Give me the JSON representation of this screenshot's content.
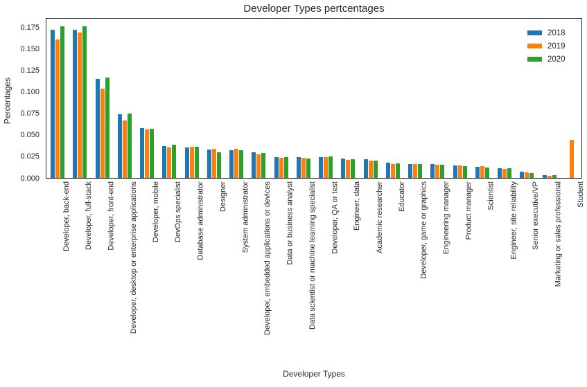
{
  "chart_data": {
    "type": "bar",
    "title": "Developer Types pertcentages",
    "xlabel": "Developer Types",
    "ylabel": "Percentages",
    "grid": false,
    "legend_position": "upper right inside plot",
    "ylim": [
      0,
      0.1868
    ],
    "ytick_labels": [
      "0.000",
      "0.025",
      "0.050",
      "0.075",
      "0.100",
      "0.125",
      "0.150",
      "0.175"
    ],
    "ytick_values": [
      0,
      0.025,
      0.05,
      0.075,
      0.1,
      0.125,
      0.15,
      0.175
    ],
    "categories": [
      "Developer, back-end",
      "Developer, full-stack",
      "Developer, front-end",
      "Developer, desktop or enterprise applications",
      "Developer, mobile",
      "DevOps specialist",
      "Database administrator",
      "Designer",
      "System administrator",
      "Developer, embedded applications or devices",
      "Data or business analyst",
      "Data scientist or machine learning specialist",
      "Developer, QA or test",
      "Engineer, data",
      "Academic researcher",
      "Educator",
      "Developer, game or graphics",
      "Engineering manager",
      "Product manager",
      "Scientist",
      "Engineer, site reliability",
      "Senior executive/VP",
      "Marketing or sales professional",
      "Student"
    ],
    "series": [
      {
        "name": "2018",
        "color": "#1f77b4",
        "values": [
          0.172,
          0.172,
          0.115,
          0.074,
          0.058,
          0.037,
          0.0355,
          0.033,
          0.032,
          0.0295,
          0.0245,
          0.024,
          0.024,
          0.0225,
          0.022,
          0.0175,
          0.0165,
          0.016,
          0.0145,
          0.0125,
          0.0115,
          0.0075,
          0.0035,
          0
        ]
      },
      {
        "name": "2019",
        "color": "#ff7f0e",
        "values": [
          0.161,
          0.169,
          0.104,
          0.067,
          0.056,
          0.0355,
          0.0365,
          0.0335,
          0.034,
          0.027,
          0.023,
          0.0235,
          0.024,
          0.021,
          0.0205,
          0.016,
          0.016,
          0.015,
          0.0145,
          0.0135,
          0.0105,
          0.0065,
          0.0025,
          0.044
        ]
      },
      {
        "name": "2020",
        "color": "#2ca02c",
        "values": [
          0.176,
          0.176,
          0.117,
          0.0745,
          0.0575,
          0.039,
          0.036,
          0.03,
          0.0325,
          0.029,
          0.024,
          0.0225,
          0.025,
          0.0215,
          0.0205,
          0.017,
          0.016,
          0.015,
          0.014,
          0.012,
          0.011,
          0.006,
          0.003,
          0
        ]
      }
    ]
  },
  "colors": {
    "background": "#ffffff",
    "spine": "#262626",
    "text": "#262626"
  }
}
